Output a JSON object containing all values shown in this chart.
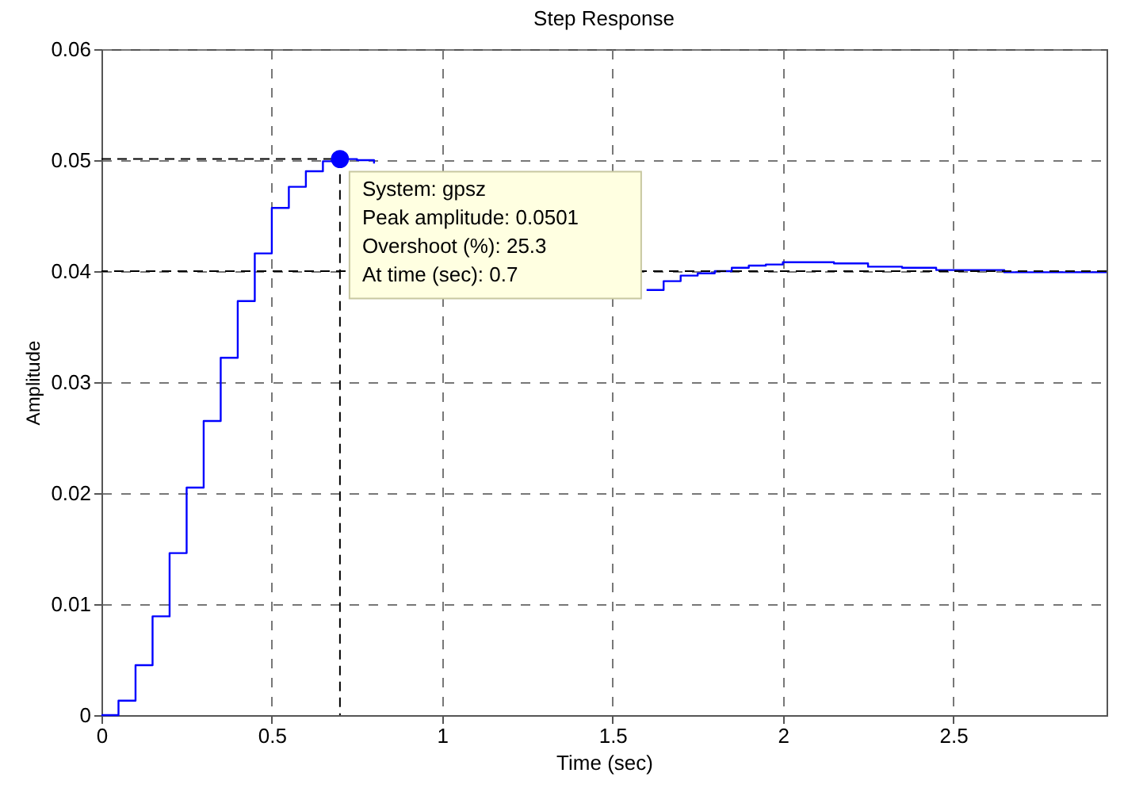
{
  "chart_data": {
    "type": "step",
    "title": "Step Response",
    "xlabel": "Time (sec)",
    "ylabel": "Amplitude",
    "xlim": [
      0,
      2.95
    ],
    "xticks": [
      0,
      0.5,
      1,
      1.5,
      2,
      2.5
    ],
    "ylim": [
      0,
      0.06
    ],
    "yticks": [
      0,
      0.01,
      0.02,
      0.03,
      0.04,
      0.05,
      0.06
    ],
    "grid": true,
    "series": [
      {
        "color": "#0000ff",
        "x": [
          0,
          0.05,
          0.1,
          0.15,
          0.2,
          0.25,
          0.3,
          0.35,
          0.4,
          0.45,
          0.5,
          0.55,
          0.6,
          0.65,
          0.7,
          0.75,
          0.8,
          0.85,
          1.6,
          1.65,
          1.7,
          1.75,
          1.8,
          1.85,
          1.9,
          1.95,
          2.0,
          2.15,
          2.25,
          2.35,
          2.45,
          2.65,
          2.95
        ],
        "values": [
          0,
          0.0013,
          0.0045,
          0.0089,
          0.0146,
          0.0205,
          0.0265,
          0.0322,
          0.0373,
          0.0416,
          0.0457,
          0.0476,
          0.049,
          0.0499,
          0.0501,
          0.05,
          0.0497,
          null,
          0.0383,
          0.0391,
          0.0396,
          0.0398,
          0.04,
          0.0403,
          0.0405,
          0.0406,
          0.0408,
          0.0407,
          0.0404,
          0.0403,
          0.0401,
          0.0399,
          0.0399
        ]
      },
      {
        "type": "line",
        "color": "#000000",
        "line_style": "dashed",
        "x": [
          0,
          0.7,
          0.7
        ],
        "values": [
          0.0501,
          0.0501,
          0
        ]
      },
      {
        "type": "scatter",
        "color": "#0000ff",
        "marker": "circle",
        "x": [
          0.7
        ],
        "values": [
          0.0501
        ]
      }
    ],
    "ref_lines": [
      {
        "axis": "y",
        "value": 0.04,
        "color": "#000000",
        "line_style": "dashed"
      }
    ],
    "annotations": [
      {
        "text": "System: gpsz\nPeak amplitude: 0.0501\nOvershoot (%): 25.3\nAt time (sec): 0.7",
        "x": 0.7,
        "y": 0.0501
      }
    ]
  }
}
